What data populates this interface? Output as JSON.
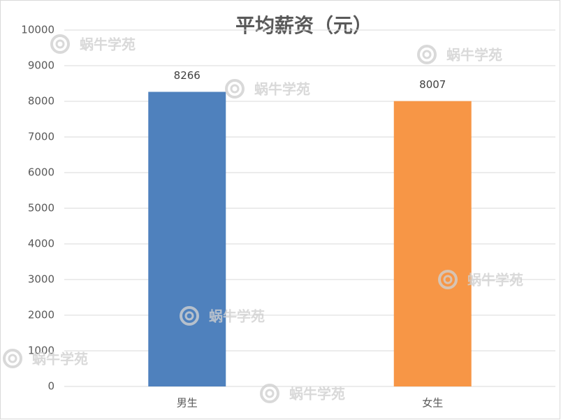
{
  "chart_data": {
    "type": "bar",
    "title": "平均薪资（元）",
    "categories": [
      "男生",
      "女生"
    ],
    "values": [
      8266,
      8007
    ],
    "colors": [
      "#4f81bd",
      "#f79646"
    ],
    "ylim": [
      0,
      10000
    ],
    "yticks": [
      0,
      1000,
      2000,
      3000,
      4000,
      5000,
      6000,
      7000,
      8000,
      9000,
      10000
    ],
    "grid": true,
    "watermark": "蜗牛学苑"
  }
}
